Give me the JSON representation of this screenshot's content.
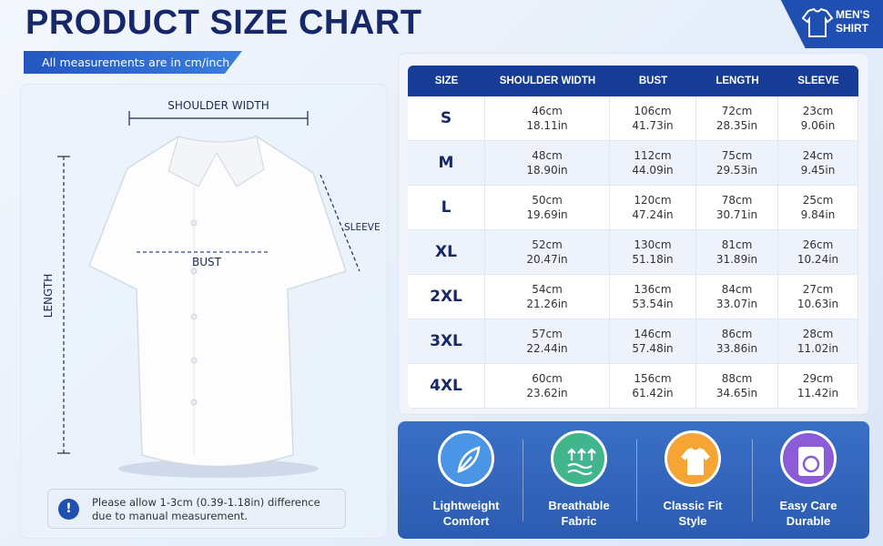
{
  "header": {
    "title": "PRODUCT SIZE CHART",
    "subtitle": "All measurements are in cm/inch"
  },
  "badge": {
    "lines": [
      "MEN'S",
      "SHIRT"
    ]
  },
  "diagram": {
    "shoulder_width": "SHOULDER WIDTH",
    "sleeve": "SLEEVE",
    "bust": "BUST",
    "length": "LENGTH"
  },
  "note": "Please allow 1-3cm (0.39-1.18in) difference due to manual measurement.",
  "table": {
    "columns": [
      "SIZE",
      "SHOULDER WIDTH",
      "BUST",
      "LENGTH",
      "SLEEVE"
    ],
    "rows": [
      {
        "size": "S",
        "cells": [
          [
            "46cm",
            "18.11in"
          ],
          [
            "106cm",
            "41.73in"
          ],
          [
            "72cm",
            "28.35in"
          ],
          [
            "23cm",
            "9.06in"
          ]
        ]
      },
      {
        "size": "M",
        "cells": [
          [
            "48cm",
            "18.90in"
          ],
          [
            "112cm",
            "44.09in"
          ],
          [
            "75cm",
            "29.53in"
          ],
          [
            "24cm",
            "9.45in"
          ]
        ]
      },
      {
        "size": "L",
        "cells": [
          [
            "50cm",
            "19.69in"
          ],
          [
            "120cm",
            "47.24in"
          ],
          [
            "78cm",
            "30.71in"
          ],
          [
            "25cm",
            "9.84in"
          ]
        ]
      },
      {
        "size": "XL",
        "cells": [
          [
            "52cm",
            "20.47in"
          ],
          [
            "130cm",
            "51.18in"
          ],
          [
            "81cm",
            "31.89in"
          ],
          [
            "26cm",
            "10.24in"
          ]
        ]
      },
      {
        "size": "2XL",
        "cells": [
          [
            "54cm",
            "21.26in"
          ],
          [
            "136cm",
            "53.54in"
          ],
          [
            "84cm",
            "33.07in"
          ],
          [
            "27cm",
            "10.63in"
          ]
        ]
      },
      {
        "size": "3XL",
        "cells": [
          [
            "57cm",
            "22.44in"
          ],
          [
            "146cm",
            "57.48in"
          ],
          [
            "86cm",
            "33.86in"
          ],
          [
            "28cm",
            "11.02in"
          ]
        ]
      },
      {
        "size": "4XL",
        "cells": [
          [
            "60cm",
            "23.62in"
          ],
          [
            "156cm",
            "61.42in"
          ],
          [
            "88cm",
            "34.65in"
          ],
          [
            "29cm",
            "11.42in"
          ]
        ]
      }
    ]
  },
  "features": [
    {
      "lines": [
        "Lightweight",
        "Comfort"
      ]
    },
    {
      "lines": [
        "Breathable",
        "Fabric"
      ]
    },
    {
      "lines": [
        "Classic Fit",
        "Style"
      ]
    },
    {
      "lines": [
        "Easy Care",
        "Durable"
      ]
    }
  ]
}
